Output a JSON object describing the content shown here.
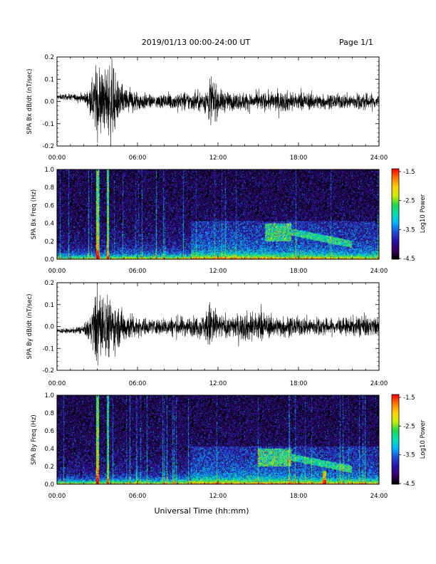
{
  "header": {
    "title": "2019/01/13  00:00-24:00 UT",
    "page": "Page 1/1"
  },
  "xaxis": {
    "label": "Universal Time (hh:mm)",
    "ticks": [
      "00:00",
      "06:00",
      "12:00",
      "18:00",
      "24:00"
    ],
    "range_hours": [
      0,
      24
    ]
  },
  "colorbar": {
    "label": "Log10 Power",
    "ticks": [
      "-1.5",
      "-2.5",
      "-3.5",
      "-4.5"
    ],
    "range": [
      -4.5,
      -1.5
    ],
    "colormap": [
      "#000000",
      "#3b006b",
      "#2a14a8",
      "#1f4fd6",
      "#00b4ff",
      "#00e0b4",
      "#1fd84a",
      "#c8f000",
      "#ffd200",
      "#ff7a00",
      "#ff0000"
    ]
  },
  "chart_data": [
    {
      "type": "line",
      "panel": "bx-time-series",
      "ylabel": "SPA Bx dB/dt (nT/sec)",
      "ylim": [
        -0.2,
        0.2
      ],
      "yticks": [
        "0.2",
        "0.1",
        "0.0",
        "-0.1",
        "-0.2"
      ],
      "xlim_hours": [
        0,
        24
      ],
      "envelope": {
        "hours": [
          0,
          1,
          2,
          2.5,
          3.0,
          3.5,
          4.0,
          4.5,
          5,
          6,
          7,
          8,
          9,
          10,
          11,
          11.5,
          12,
          13,
          14,
          15,
          16,
          17,
          18,
          19,
          20,
          21,
          22,
          23,
          24
        ],
        "amplitude": [
          0.012,
          0.015,
          0.02,
          0.06,
          0.2,
          0.14,
          0.2,
          0.1,
          0.075,
          0.05,
          0.03,
          0.035,
          0.045,
          0.045,
          0.05,
          0.14,
          0.06,
          0.04,
          0.045,
          0.04,
          0.045,
          0.05,
          0.045,
          0.04,
          0.035,
          0.035,
          0.04,
          0.04,
          0.035
        ],
        "offset": [
          0.02,
          0.02,
          0.015,
          0.01,
          0.0,
          0.0,
          0.0,
          0.0,
          0.0,
          0.0,
          0.0,
          0.0,
          0.0,
          0.0,
          0.0,
          0.0,
          0.0,
          0.0,
          0.0,
          0.0,
          0.0,
          0.0,
          0.0,
          0.0,
          0.0,
          0.0,
          0.0,
          0.0,
          0.0
        ]
      }
    },
    {
      "type": "heatmap",
      "panel": "bx-spectrogram",
      "ylabel": "SPA Bx Freq (Hz)",
      "ylim": [
        0.0,
        1.0
      ],
      "yticks": [
        "1.0",
        "0.8",
        "0.6",
        "0.4",
        "0.2",
        "0.0"
      ],
      "xlim_hours": [
        0,
        24
      ],
      "zlim": [
        -4.5,
        -1.5
      ],
      "bright_bands_hours": [
        2.9,
        3.1
      ],
      "enhanced_region_hours": [
        15.5,
        17.5
      ],
      "enhanced_region_freq": [
        0.2,
        0.4
      ]
    },
    {
      "type": "line",
      "panel": "by-time-series",
      "ylabel": "SPA By dB/dt (nT/sec)",
      "ylim": [
        -0.2,
        0.2
      ],
      "yticks": [
        "0.2",
        "0.1",
        "0.0",
        "-0.1",
        "-0.2"
      ],
      "xlim_hours": [
        0,
        24
      ],
      "envelope": {
        "hours": [
          0,
          1,
          2,
          2.5,
          3.0,
          3.5,
          4.0,
          4.5,
          5,
          6,
          7,
          8,
          9,
          10,
          11,
          11.5,
          12,
          13,
          14,
          15,
          16,
          17,
          18,
          19,
          20,
          21,
          22,
          23,
          24
        ],
        "amplitude": [
          0.012,
          0.012,
          0.02,
          0.07,
          0.2,
          0.16,
          0.14,
          0.1,
          0.08,
          0.05,
          0.035,
          0.04,
          0.05,
          0.045,
          0.06,
          0.14,
          0.06,
          0.05,
          0.07,
          0.08,
          0.05,
          0.05,
          0.045,
          0.05,
          0.04,
          0.04,
          0.045,
          0.05,
          0.04
        ],
        "offset": [
          -0.02,
          -0.02,
          -0.015,
          -0.01,
          0.0,
          0.0,
          0.0,
          0.0,
          0.0,
          0.0,
          0.0,
          0.0,
          0.0,
          0.0,
          0.0,
          0.0,
          0.0,
          0.0,
          0.0,
          0.0,
          0.0,
          0.0,
          0.0,
          0.0,
          0.0,
          0.0,
          0.0,
          0.0,
          0.0
        ]
      }
    },
    {
      "type": "heatmap",
      "panel": "by-spectrogram",
      "ylabel": "SPA By Freq (Hz)",
      "ylim": [
        0.0,
        1.0
      ],
      "yticks": [
        "1.0",
        "0.8",
        "0.6",
        "0.4",
        "0.2",
        "0.0"
      ],
      "xlim_hours": [
        0,
        24
      ],
      "zlim": [
        -4.5,
        -1.5
      ],
      "bright_bands_hours": [
        2.9,
        3.1
      ],
      "enhanced_region_hours": [
        15.0,
        17.5
      ],
      "enhanced_region_freq": [
        0.2,
        0.4
      ]
    }
  ]
}
